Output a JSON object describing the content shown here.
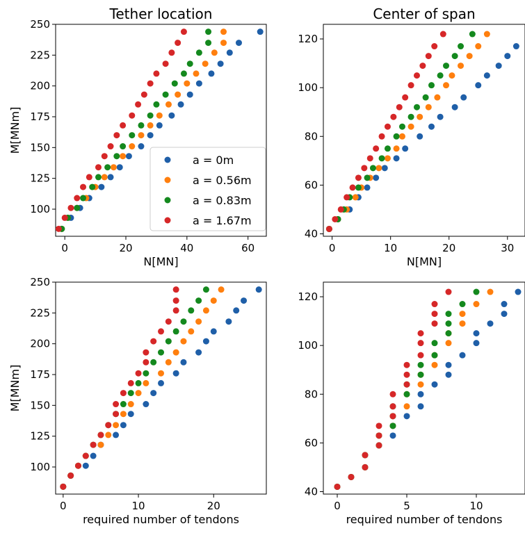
{
  "legend": {
    "items": [
      {
        "label": "a = 0m",
        "color": "#1f5fa8"
      },
      {
        "label": "a = 0.56m",
        "color": "#ff7f0e"
      },
      {
        "label": "a = 0.83m",
        "color": "#14891e"
      },
      {
        "label": "a = 1.67m",
        "color": "#d62728"
      }
    ]
  },
  "chart_data": [
    {
      "type": "scatter",
      "title": "Tether location",
      "xlabel": "N[MN]",
      "ylabel": "M[MNm]",
      "xlim": [
        -3,
        66
      ],
      "ylim": [
        78,
        250
      ],
      "xticks": [
        0,
        20,
        40,
        60
      ],
      "yticks": [
        100,
        125,
        150,
        175,
        200,
        225,
        250
      ],
      "legend_position": "lower-right",
      "y_values": [
        84,
        93,
        101,
        109,
        118,
        126,
        134,
        143,
        151,
        160,
        168,
        176,
        185,
        193,
        202,
        210,
        218,
        227,
        235,
        244
      ],
      "series": [
        {
          "name": "a = 0m",
          "color": "#1f5fa8",
          "x": [
            -1,
            2,
            5,
            8,
            12,
            15,
            18,
            21,
            25,
            28,
            31,
            35,
            38,
            41,
            44,
            48,
            51,
            54,
            57,
            64
          ]
        },
        {
          "name": "a = 0.56m",
          "color": "#ff7f0e",
          "x": [
            -1,
            1,
            4,
            7,
            10,
            13,
            16,
            19,
            22,
            25,
            28,
            31,
            34,
            37,
            40,
            43,
            46,
            49,
            52,
            52
          ]
        },
        {
          "name": "a = 0.83m",
          "color": "#14891e",
          "x": [
            -1,
            1,
            4,
            6,
            9,
            11,
            14,
            17,
            19,
            22,
            25,
            28,
            30,
            33,
            36,
            39,
            41,
            44,
            47,
            47
          ]
        },
        {
          "name": "a = 1.67m",
          "color": "#d62728",
          "x": [
            -2,
            0,
            2,
            4,
            6,
            8,
            11,
            13,
            15,
            17,
            19,
            22,
            24,
            26,
            28,
            30,
            33,
            35,
            37,
            39
          ]
        }
      ]
    },
    {
      "type": "scatter",
      "title": "Center of span",
      "xlabel": "N[MN]",
      "ylabel": "",
      "xlim": [
        -1.5,
        33
      ],
      "ylim": [
        39,
        126
      ],
      "xticks": [
        0,
        10,
        20,
        30
      ],
      "yticks": [
        40,
        60,
        80,
        100,
        120
      ],
      "y_values": [
        42,
        46,
        50,
        55,
        59,
        63,
        67,
        71,
        75,
        80,
        84,
        88,
        92,
        96,
        101,
        105,
        109,
        113,
        117,
        122
      ],
      "series": [
        {
          "name": "a = 0m",
          "color": "#1f5fa8",
          "x": [
            -0.5,
            1,
            3,
            4.5,
            6,
            7.5,
            9,
            11,
            12.5,
            15,
            17,
            18.5,
            21,
            22.5,
            25,
            26.5,
            28.5,
            30,
            31.5,
            33
          ]
        },
        {
          "name": "a = 0.56m",
          "color": "#ff7f0e",
          "x": [
            -0.5,
            1,
            2.5,
            4,
            5,
            6.5,
            8,
            9.5,
            11,
            12,
            13.5,
            15,
            16.5,
            18,
            19.5,
            20.5,
            22,
            23.5,
            25,
            26.5
          ]
        },
        {
          "name": "a = 0.83m",
          "color": "#14891e",
          "x": [
            -0.5,
            1,
            2,
            3,
            4.5,
            6,
            7,
            8.5,
            9.5,
            11,
            12,
            13.5,
            14.5,
            16,
            17,
            18.5,
            19.5,
            21,
            22,
            24
          ]
        },
        {
          "name": "a = 1.67m",
          "color": "#d62728",
          "x": [
            -0.5,
            0.5,
            1.5,
            2.5,
            3.5,
            4.5,
            5.5,
            6.5,
            7.5,
            8.5,
            9.5,
            10.5,
            11.5,
            12.5,
            13.5,
            14.5,
            15.5,
            16.5,
            17.5,
            19
          ]
        }
      ]
    },
    {
      "type": "scatter",
      "title": "",
      "xlabel": "required number of tendons",
      "ylabel": "M[MNm]",
      "xlim": [
        -1,
        27
      ],
      "ylim": [
        78,
        250
      ],
      "xticks": [
        0,
        10,
        20
      ],
      "yticks": [
        100,
        125,
        150,
        175,
        200,
        225,
        250
      ],
      "y_values": [
        84,
        93,
        101,
        109,
        118,
        126,
        134,
        143,
        151,
        160,
        168,
        176,
        185,
        193,
        202,
        210,
        218,
        227,
        235,
        244
      ],
      "series": [
        {
          "name": "a = 0m",
          "color": "#1f5fa8",
          "x": [
            0,
            1,
            3,
            4,
            5,
            7,
            8,
            9,
            11,
            12,
            13,
            15,
            16,
            18,
            19,
            20,
            22,
            23,
            24,
            26
          ]
        },
        {
          "name": "a = 0.56m",
          "color": "#ff7f0e",
          "x": [
            0,
            1,
            2,
            3,
            5,
            6,
            7,
            8,
            9,
            10,
            11,
            13,
            14,
            15,
            16,
            17,
            18,
            19,
            20,
            21
          ]
        },
        {
          "name": "a = 0.83m",
          "color": "#14891e",
          "x": [
            0,
            1,
            2,
            3,
            4,
            5,
            6,
            7,
            8,
            9,
            10,
            11,
            12,
            13,
            14,
            15,
            16,
            17,
            18,
            19
          ]
        },
        {
          "name": "a = 1.67m",
          "color": "#d62728",
          "x": [
            0,
            1,
            2,
            3,
            4,
            5,
            6,
            7,
            7,
            8,
            9,
            10,
            11,
            11,
            12,
            13,
            14,
            15,
            15,
            15
          ]
        }
      ]
    },
    {
      "type": "scatter",
      "title": "",
      "xlabel": "required number of tendons",
      "ylabel": "",
      "xlim": [
        -1,
        13.5
      ],
      "ylim": [
        39,
        126
      ],
      "xticks": [
        0,
        5,
        10
      ],
      "yticks": [
        40,
        60,
        80,
        100,
        120
      ],
      "y_values": [
        42,
        46,
        50,
        55,
        59,
        63,
        67,
        71,
        75,
        80,
        84,
        88,
        92,
        96,
        101,
        105,
        109,
        113,
        117,
        122
      ],
      "series": [
        {
          "name": "a = 0m",
          "color": "#1f5fa8",
          "x": [
            0,
            1,
            2,
            2,
            3,
            4,
            4,
            5,
            6,
            6,
            7,
            8,
            8,
            9,
            10,
            10,
            11,
            12,
            12,
            13
          ]
        },
        {
          "name": "a = 0.56m",
          "color": "#ff7f0e",
          "x": [
            0,
            1,
            2,
            2,
            3,
            3,
            4,
            4,
            5,
            5,
            6,
            6,
            7,
            7,
            8,
            8,
            9,
            9,
            10,
            11
          ]
        },
        {
          "name": "a = 0.83m",
          "color": "#14891e",
          "x": [
            0,
            1,
            2,
            2,
            3,
            3,
            4,
            4,
            4,
            5,
            5,
            6,
            6,
            7,
            7,
            8,
            8,
            8,
            9,
            10
          ]
        },
        {
          "name": "a = 1.67m",
          "color": "#d62728",
          "x": [
            0,
            1,
            2,
            2,
            3,
            3,
            3,
            4,
            4,
            4,
            5,
            5,
            5,
            6,
            6,
            6,
            7,
            7,
            7,
            8
          ]
        }
      ]
    }
  ]
}
